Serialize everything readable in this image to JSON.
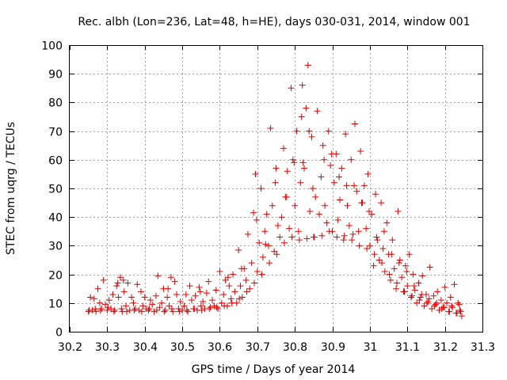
{
  "chart_data": {
    "type": "scatter",
    "title": "Rec. albh (Lon=236, Lat=48, h=HE), days 030-031, 2014, window 001",
    "xlabel": "GPS time / Days of year 2014",
    "ylabel": "STEC from uqrg / TECUs",
    "xlim": [
      30.2,
      31.3
    ],
    "ylim": [
      0,
      100
    ],
    "grid": true,
    "marker": "+",
    "color": "#e00000",
    "xticks": [
      30.2,
      30.3,
      30.4,
      30.5,
      30.6,
      30.7,
      30.8,
      30.9,
      31,
      31.1,
      31.2,
      31.3
    ],
    "xtick_labels": [
      "30.2",
      "30.3",
      "30.4",
      "30.5",
      "30.6",
      "30.7",
      "30.8",
      "30.9",
      "31",
      "31.1",
      "31.2",
      "31.3"
    ],
    "yticks": [
      0,
      10,
      20,
      30,
      40,
      50,
      60,
      70,
      80,
      90,
      100
    ],
    "ytick_labels": [
      "0",
      "10",
      "20",
      "30",
      "40",
      "50",
      "60",
      "70",
      "80",
      "90",
      "100"
    ],
    "series": [
      {
        "name": "STEC",
        "points": [
          [
            30.25,
            7.0
          ],
          [
            30.255,
            12.0
          ],
          [
            30.26,
            7.5
          ],
          [
            30.265,
            11.5
          ],
          [
            30.27,
            7.0
          ],
          [
            30.275,
            15.0
          ],
          [
            30.28,
            10.0
          ],
          [
            30.285,
            8.0
          ],
          [
            30.29,
            18.0
          ],
          [
            30.295,
            9.5
          ],
          [
            30.3,
            7.5
          ],
          [
            30.305,
            11.0
          ],
          [
            30.31,
            8.0
          ],
          [
            30.315,
            13.0
          ],
          [
            30.32,
            7.5
          ],
          [
            30.325,
            16.0
          ],
          [
            30.33,
            12.0
          ],
          [
            30.335,
            19.0
          ],
          [
            30.34,
            7.0
          ],
          [
            30.345,
            14.0
          ],
          [
            30.35,
            9.0
          ],
          [
            30.355,
            17.0
          ],
          [
            30.36,
            7.5
          ],
          [
            30.365,
            12.0
          ],
          [
            30.37,
            10.0
          ],
          [
            30.375,
            8.0
          ],
          [
            30.38,
            16.5
          ],
          [
            30.385,
            7.5
          ],
          [
            30.39,
            14.0
          ],
          [
            30.395,
            9.0
          ],
          [
            30.4,
            12.0
          ],
          [
            30.405,
            8.0
          ],
          [
            30.41,
            7.5
          ],
          [
            30.415,
            11.0
          ],
          [
            30.42,
            9.5
          ],
          [
            30.425,
            7.0
          ],
          [
            30.43,
            12.5
          ],
          [
            30.435,
            19.5
          ],
          [
            30.44,
            8.5
          ],
          [
            30.445,
            10.0
          ],
          [
            30.45,
            15.0
          ],
          [
            30.455,
            7.5
          ],
          [
            30.46,
            12.0
          ],
          [
            30.465,
            9.0
          ],
          [
            30.47,
            19.0
          ],
          [
            30.475,
            7.0
          ],
          [
            30.48,
            17.5
          ],
          [
            30.485,
            13.0
          ],
          [
            30.49,
            8.0
          ],
          [
            30.495,
            10.5
          ],
          [
            30.5,
            7.5
          ],
          [
            30.505,
            9.0
          ],
          [
            30.51,
            13.0
          ],
          [
            30.515,
            7.0
          ],
          [
            30.52,
            16.0
          ],
          [
            30.525,
            11.0
          ],
          [
            30.53,
            8.0
          ],
          [
            30.535,
            12.5
          ],
          [
            30.54,
            7.5
          ],
          [
            30.545,
            15.5
          ],
          [
            30.55,
            9.0
          ],
          [
            30.555,
            10.5
          ],
          [
            30.56,
            8.0
          ],
          [
            30.565,
            13.5
          ],
          [
            30.57,
            17.5
          ],
          [
            30.575,
            8.5
          ],
          [
            30.58,
            11.0
          ],
          [
            30.585,
            9.0
          ],
          [
            30.59,
            14.5
          ],
          [
            30.595,
            8.0
          ],
          [
            30.6,
            21.0
          ],
          [
            30.605,
            10.0
          ],
          [
            30.61,
            13.0
          ],
          [
            30.615,
            18.0
          ],
          [
            30.62,
            9.0
          ],
          [
            30.625,
            16.0
          ],
          [
            30.63,
            11.5
          ],
          [
            30.635,
            20.0
          ],
          [
            30.64,
            14.0
          ],
          [
            30.645,
            10.0
          ],
          [
            30.65,
            28.5
          ],
          [
            30.655,
            16.0
          ],
          [
            30.66,
            12.0
          ],
          [
            30.665,
            22.0
          ],
          [
            30.67,
            18.0
          ],
          [
            30.675,
            34.0
          ],
          [
            30.68,
            15.0
          ],
          [
            30.685,
            24.0
          ],
          [
            30.69,
            41.5
          ],
          [
            30.695,
            55.0
          ],
          [
            30.7,
            21.0
          ],
          [
            30.705,
            31.0
          ],
          [
            30.71,
            50.0
          ],
          [
            30.715,
            26.0
          ],
          [
            30.72,
            35.0
          ],
          [
            30.725,
            41.0
          ],
          [
            30.73,
            30.0
          ],
          [
            30.735,
            71.0
          ],
          [
            30.74,
            44.0
          ],
          [
            30.745,
            28.0
          ],
          [
            30.75,
            57.0
          ],
          [
            30.755,
            37.0
          ],
          [
            30.76,
            33.0
          ],
          [
            30.765,
            40.0
          ],
          [
            30.77,
            64.0
          ],
          [
            30.775,
            47.0
          ],
          [
            30.78,
            56.0
          ],
          [
            30.785,
            36.0
          ],
          [
            30.79,
            85.0
          ],
          [
            30.795,
            60.0
          ],
          [
            30.8,
            44.0
          ],
          [
            30.805,
            70.0
          ],
          [
            30.81,
            35.0
          ],
          [
            30.815,
            52.0
          ],
          [
            30.82,
            86.0
          ],
          [
            30.825,
            57.0
          ],
          [
            30.83,
            78.0
          ],
          [
            30.835,
            93.0
          ],
          [
            30.84,
            42.0
          ],
          [
            30.845,
            68.0
          ],
          [
            30.85,
            33.0
          ],
          [
            30.855,
            47.0
          ],
          [
            30.86,
            77.0
          ],
          [
            30.865,
            41.0
          ],
          [
            30.87,
            54.0
          ],
          [
            30.875,
            65.0
          ],
          [
            30.88,
            44.0
          ],
          [
            30.885,
            38.0
          ],
          [
            30.89,
            70.0
          ],
          [
            30.895,
            58.0
          ],
          [
            30.9,
            35.0
          ],
          [
            30.905,
            52.0
          ],
          [
            30.91,
            62.0
          ],
          [
            30.915,
            39.0
          ],
          [
            30.92,
            46.0
          ],
          [
            30.925,
            57.0
          ],
          [
            30.93,
            32.0
          ],
          [
            30.935,
            69.0
          ],
          [
            30.94,
            44.0
          ],
          [
            30.945,
            37.0
          ],
          [
            30.95,
            60.0
          ],
          [
            30.955,
            34.0
          ],
          [
            30.96,
            72.5
          ],
          [
            30.965,
            49.0
          ],
          [
            30.97,
            35.0
          ],
          [
            30.975,
            63.0
          ],
          [
            30.98,
            45.0
          ],
          [
            30.985,
            51.0
          ],
          [
            30.99,
            36.0
          ],
          [
            30.995,
            55.0
          ],
          [
            31.0,
            30.0
          ],
          [
            31.005,
            41.0
          ],
          [
            31.01,
            23.0
          ],
          [
            31.015,
            48.0
          ],
          [
            31.02,
            32.0
          ],
          [
            31.025,
            25.0
          ],
          [
            31.03,
            45.0
          ],
          [
            31.035,
            29.0
          ],
          [
            31.04,
            21.0
          ],
          [
            31.045,
            38.0
          ],
          [
            31.05,
            27.0
          ],
          [
            31.055,
            18.0
          ],
          [
            31.06,
            32.0
          ],
          [
            31.065,
            22.0
          ],
          [
            31.07,
            15.0
          ],
          [
            31.075,
            42.0
          ],
          [
            31.08,
            25.0
          ],
          [
            31.085,
            19.0
          ],
          [
            31.09,
            14.0
          ],
          [
            31.095,
            23.0
          ],
          [
            31.1,
            16.0
          ],
          [
            31.105,
            27.0
          ],
          [
            31.11,
            12.0
          ],
          [
            31.115,
            20.0
          ],
          [
            31.12,
            14.5
          ],
          [
            31.125,
            10.0
          ],
          [
            31.13,
            17.0
          ],
          [
            31.135,
            12.0
          ],
          [
            31.14,
            19.5
          ],
          [
            31.145,
            9.0
          ],
          [
            31.15,
            13.0
          ],
          [
            31.155,
            10.5
          ],
          [
            31.16,
            22.5
          ],
          [
            31.165,
            8.0
          ],
          [
            31.17,
            12.5
          ],
          [
            31.175,
            9.5
          ],
          [
            31.18,
            14.0
          ],
          [
            31.185,
            7.5
          ],
          [
            31.19,
            11.0
          ],
          [
            31.195,
            8.5
          ],
          [
            31.2,
            15.5
          ],
          [
            31.205,
            10.0
          ],
          [
            31.21,
            7.0
          ],
          [
            31.215,
            12.0
          ],
          [
            31.22,
            8.5
          ],
          [
            31.225,
            16.5
          ],
          [
            31.23,
            6.5
          ],
          [
            31.235,
            10.0
          ],
          [
            31.24,
            7.5
          ],
          [
            31.245,
            5.5
          ],
          [
            30.252,
            7.5
          ],
          [
            30.268,
            8.0
          ],
          [
            30.282,
            7.5
          ],
          [
            30.302,
            8.5
          ],
          [
            30.318,
            7.0
          ],
          [
            30.338,
            8.0
          ],
          [
            30.352,
            7.0
          ],
          [
            30.372,
            7.5
          ],
          [
            30.392,
            7.0
          ],
          [
            30.412,
            8.0
          ],
          [
            30.432,
            7.5
          ],
          [
            30.452,
            7.0
          ],
          [
            30.472,
            8.0
          ],
          [
            30.492,
            7.0
          ],
          [
            30.512,
            7.5
          ],
          [
            30.532,
            8.0
          ],
          [
            30.552,
            7.5
          ],
          [
            30.572,
            8.0
          ],
          [
            30.592,
            8.5
          ],
          [
            30.612,
            9.0
          ],
          [
            30.632,
            10.0
          ],
          [
            30.652,
            11.5
          ],
          [
            30.672,
            14.0
          ],
          [
            30.692,
            17.0
          ],
          [
            30.712,
            20.0
          ],
          [
            30.732,
            24.0
          ],
          [
            30.752,
            27.0
          ],
          [
            30.772,
            31.0
          ],
          [
            30.792,
            33.0
          ],
          [
            30.812,
            32.0
          ],
          [
            30.832,
            32.5
          ],
          [
            30.852,
            33.0
          ],
          [
            30.872,
            33.5
          ],
          [
            30.892,
            35.0
          ],
          [
            30.912,
            33.0
          ],
          [
            30.932,
            33.5
          ],
          [
            30.952,
            32.0
          ],
          [
            30.972,
            30.0
          ],
          [
            30.992,
            29.0
          ],
          [
            31.012,
            27.0
          ],
          [
            31.032,
            24.0
          ],
          [
            31.052,
            20.0
          ],
          [
            31.072,
            17.0
          ],
          [
            31.092,
            14.0
          ],
          [
            31.112,
            12.5
          ],
          [
            31.132,
            11.0
          ],
          [
            31.152,
            10.0
          ],
          [
            31.172,
            9.0
          ],
          [
            31.192,
            8.0
          ],
          [
            31.212,
            7.0
          ],
          [
            31.232,
            6.5
          ],
          [
            31.242,
            7.0
          ],
          [
            30.328,
            17.0
          ],
          [
            30.343,
            18.0
          ],
          [
            30.462,
            15.0
          ],
          [
            30.548,
            14.0
          ],
          [
            30.622,
            19.0
          ],
          [
            30.658,
            22.0
          ],
          [
            30.698,
            39.0
          ],
          [
            30.722,
            30.5
          ],
          [
            30.748,
            52.0
          ],
          [
            30.778,
            47.0
          ],
          [
            30.798,
            59.0
          ],
          [
            30.818,
            75.0
          ],
          [
            30.822,
            59.0
          ],
          [
            30.838,
            70.0
          ],
          [
            30.848,
            50.0
          ],
          [
            30.878,
            60.0
          ],
          [
            30.898,
            62.0
          ],
          [
            30.918,
            54.0
          ],
          [
            30.938,
            51.0
          ],
          [
            30.958,
            51.0
          ],
          [
            30.978,
            45.0
          ],
          [
            30.998,
            42.0
          ],
          [
            31.018,
            33.0
          ],
          [
            31.038,
            35.0
          ],
          [
            31.058,
            27.0
          ],
          [
            31.078,
            24.0
          ],
          [
            31.098,
            21.0
          ],
          [
            31.118,
            16.0
          ],
          [
            31.138,
            13.0
          ],
          [
            31.158,
            11.5
          ],
          [
            31.178,
            10.0
          ],
          [
            31.198,
            8.5
          ],
          [
            31.218,
            9.0
          ],
          [
            31.238,
            9.5
          ]
        ]
      }
    ]
  }
}
